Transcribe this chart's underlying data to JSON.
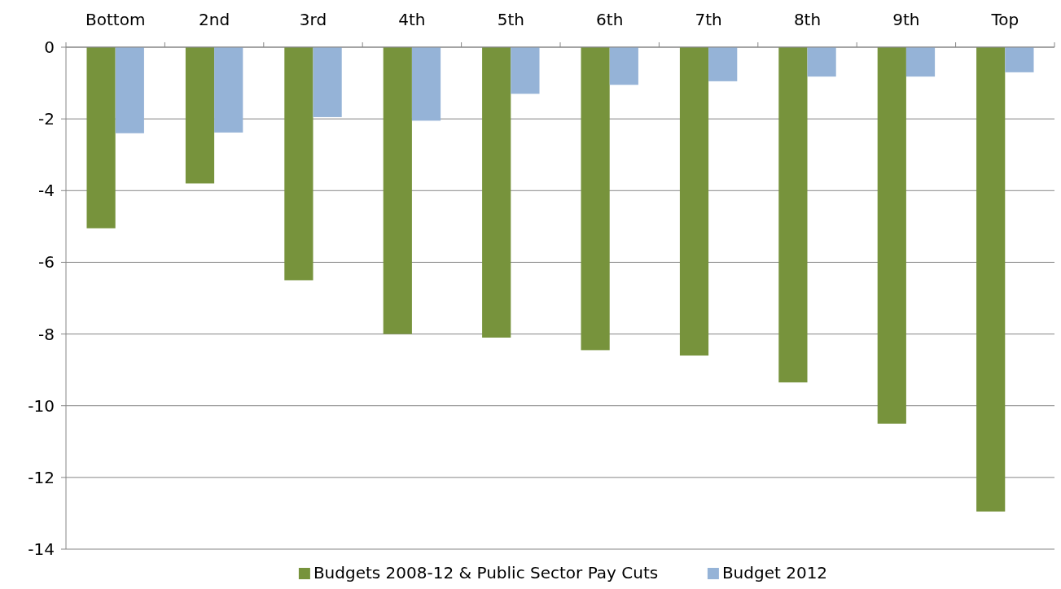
{
  "chart_data": {
    "type": "bar",
    "categories": [
      "Bottom",
      "2nd",
      "3rd",
      "4th",
      "5th",
      "6th",
      "7th",
      "8th",
      "9th",
      "Top"
    ],
    "series": [
      {
        "name": "Budgets 2008-12 & Public Sector Pay Cuts",
        "color": "#77933c",
        "values": [
          -5.05,
          -3.8,
          -6.5,
          -8.0,
          -8.1,
          -8.45,
          -8.6,
          -9.35,
          -10.5,
          -12.95
        ]
      },
      {
        "name": "Budget 2012",
        "color": "#95b3d7",
        "values": [
          -2.4,
          -2.38,
          -1.95,
          -2.05,
          -1.3,
          -1.05,
          -0.95,
          -0.82,
          -0.82,
          -0.7
        ]
      }
    ],
    "ylim": [
      -14,
      0
    ],
    "yticks": [
      0,
      -2,
      -4,
      -6,
      -8,
      -10,
      -12,
      -14
    ],
    "grid": "y",
    "legend": "bottom"
  }
}
